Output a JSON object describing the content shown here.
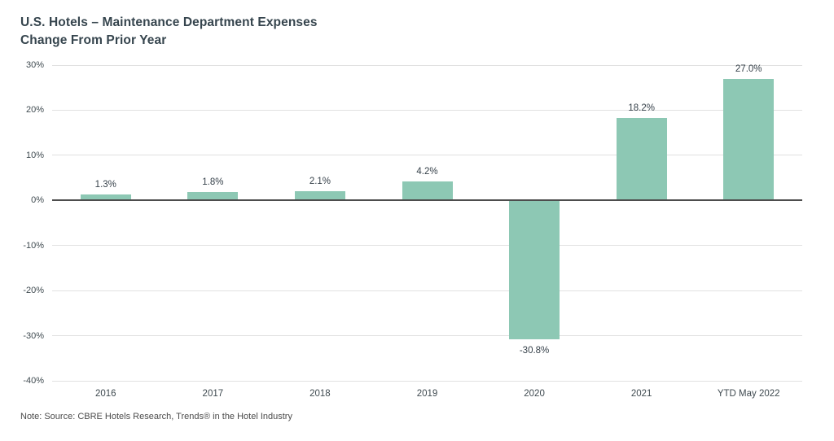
{
  "header": {
    "title_line1": "U.S. Hotels – Maintenance Department Expenses",
    "title_line2": "Change From Prior Year"
  },
  "chart_data": {
    "type": "bar",
    "title": "U.S. Hotels – Maintenance Department Expenses",
    "subtitle": "Change From Prior Year",
    "categories": [
      "2016",
      "2017",
      "2018",
      "2019",
      "2020",
      "2021",
      "YTD May 2022"
    ],
    "values": [
      1.3,
      1.8,
      2.1,
      4.2,
      -30.8,
      18.2,
      27.0
    ],
    "value_labels": [
      "1.3%",
      "1.8%",
      "2.1%",
      "4.2%",
      "-30.8%",
      "18.2%",
      "27.0%"
    ],
    "xlabel": "",
    "ylabel": "",
    "ylim": [
      -40,
      30
    ],
    "y_ticks": [
      30,
      20,
      10,
      0,
      -10,
      -20,
      -30,
      -40
    ],
    "y_tick_labels": [
      "30%",
      "20%",
      "10%",
      "0%",
      "-10%",
      "-20%",
      "-30%",
      "-40%"
    ],
    "grid": "horizontal",
    "legend": "none",
    "bar_color": "#8dc8b4",
    "grid_color": "#e1e1e1",
    "zero_line_color": "#4d4d4d",
    "title_color": "#36454e",
    "text_color": "#3f4a50"
  },
  "note": "Note:  Source: CBRE Hotels Research, Trends® in the Hotel Industry"
}
